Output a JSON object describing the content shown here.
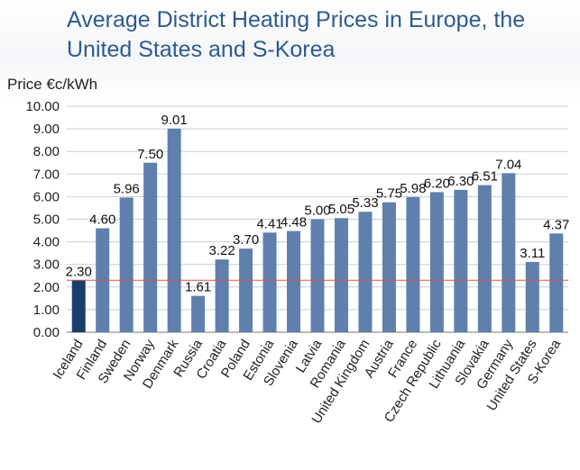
{
  "chart_data": {
    "type": "bar",
    "title": "Average District Heating Prices in Europe, the United States and S-Korea",
    "ylabel": "Price €c/kWh",
    "xlabel": "",
    "ylim": [
      0,
      10
    ],
    "yticks": [
      "0.00",
      "1.00",
      "2.00",
      "3.00",
      "4.00",
      "5.00",
      "6.00",
      "7.00",
      "8.00",
      "9.00",
      "10.00"
    ],
    "grid": true,
    "reference_line": 2.3,
    "categories": [
      "Iceland",
      "Finland",
      "Sweden",
      "Norway",
      "Denmark",
      "Russia",
      "Croatia",
      "Poland",
      "Estonia",
      "Slovenia",
      "Latvia",
      "Romania",
      "United Kingdom",
      "Austria",
      "France",
      "Czech Republic",
      "Lithuania",
      "Slovakia",
      "Germany",
      "United States",
      "S-Korea"
    ],
    "values": [
      2.3,
      4.6,
      5.96,
      7.5,
      9.01,
      1.61,
      3.22,
      3.7,
      4.41,
      4.48,
      5.0,
      5.05,
      5.33,
      5.75,
      5.98,
      6.2,
      6.3,
      6.51,
      7.04,
      3.11,
      4.37
    ],
    "value_labels": [
      "2.30",
      "4.60",
      "5.96",
      "7.50",
      "9.01",
      "1.61",
      "3.22",
      "3.70",
      "4.41",
      "4.48",
      "5.00",
      "5.05",
      "5.33",
      "5.75",
      "5.98",
      "6.20",
      "6.30",
      "6.51",
      "7.04",
      "3.11",
      "4.37"
    ],
    "colors": {
      "bar": "#5f7fad",
      "highlight_bar": "#1a3f6d",
      "reference_line": "#d9534f",
      "grid": "#c9cdd3",
      "title": "#2e5a8c"
    },
    "highlight_index": 0
  }
}
